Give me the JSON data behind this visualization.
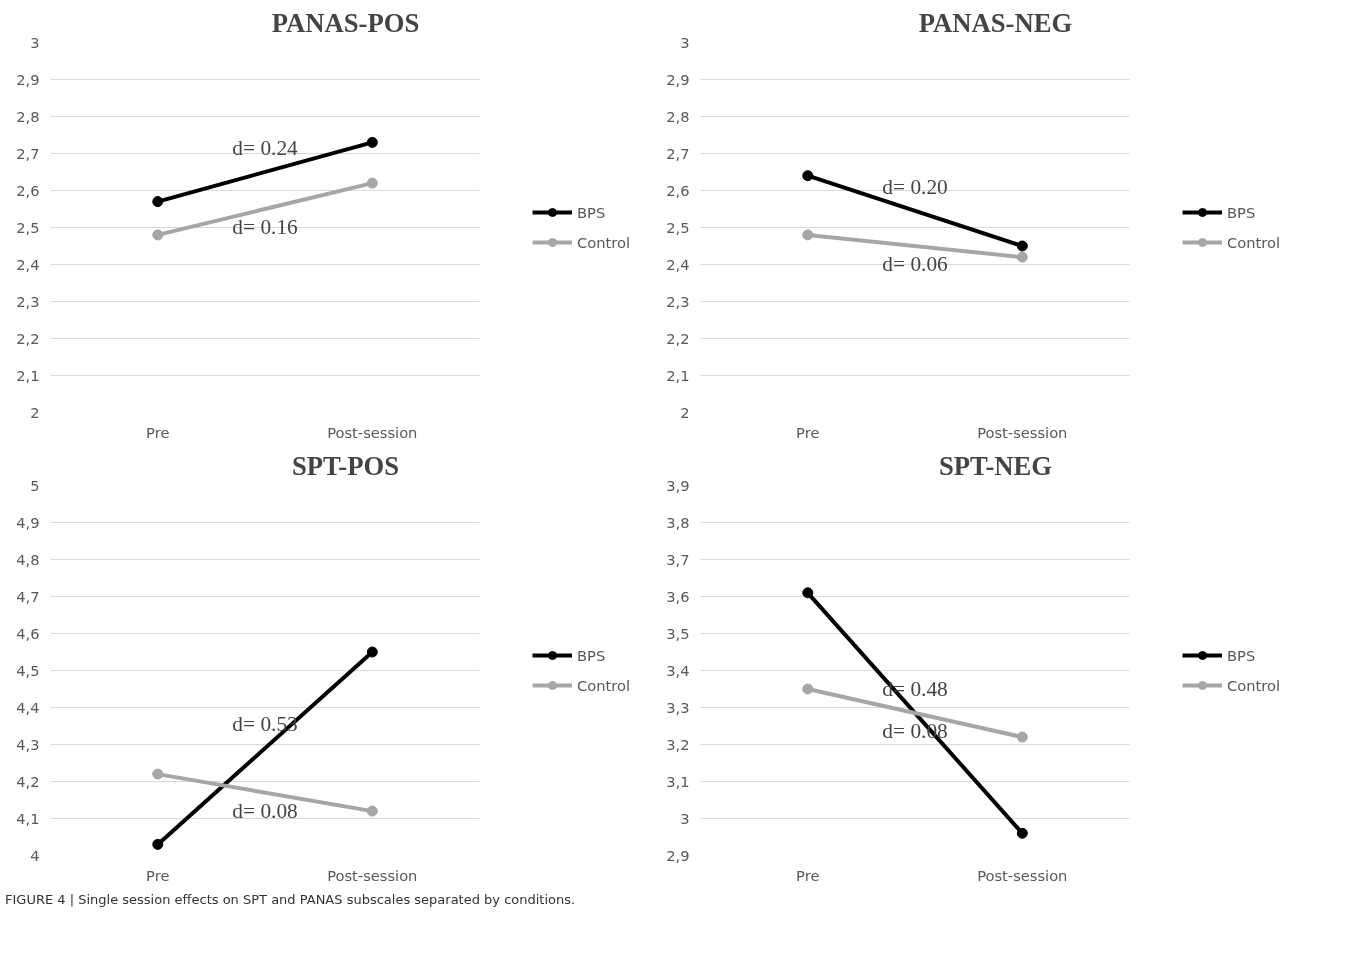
{
  "chart_data": [
    {
      "type": "line",
      "title": "PANAS-POS",
      "categories": [
        "Pre",
        "Post-session"
      ],
      "series": [
        {
          "name": "BPS",
          "color": "#000000",
          "values": [
            2.57,
            2.73
          ]
        },
        {
          "name": "Control",
          "color": "#a6a6a6",
          "values": [
            2.48,
            2.62
          ]
        }
      ],
      "ylim": [
        2,
        3
      ],
      "yticks": [
        2,
        {
          "value": 2.1,
          "label": "2,1"
        },
        {
          "value": 2.2,
          "label": "2,2"
        },
        {
          "value": 2.3,
          "label": "2,3"
        },
        {
          "value": 2.4,
          "label": "2,4"
        },
        {
          "value": 2.5,
          "label": "2,5"
        },
        {
          "value": 2.6,
          "label": "2,6"
        },
        {
          "value": 2.7,
          "label": "2,7"
        },
        {
          "value": 2.8,
          "label": "2,8"
        },
        {
          "value": 2.9,
          "label": "2,9"
        },
        3
      ],
      "annotations": [
        "d= 0.24",
        "d= 0.16"
      ],
      "grid": "y",
      "legend": "right",
      "marker": "circle",
      "line_style": "solid"
    },
    {
      "type": "line",
      "title": "PANAS-NEG",
      "categories": [
        "Pre",
        "Post-session"
      ],
      "series": [
        {
          "name": "BPS",
          "color": "#000000",
          "values": [
            2.64,
            2.45
          ]
        },
        {
          "name": "Control",
          "color": "#a6a6a6",
          "values": [
            2.48,
            2.42
          ]
        }
      ],
      "ylim": [
        2,
        3
      ],
      "yticks": [
        2,
        {
          "value": 2.1,
          "label": "2,1"
        },
        {
          "value": 2.2,
          "label": "2,2"
        },
        {
          "value": 2.3,
          "label": "2,3"
        },
        {
          "value": 2.4,
          "label": "2,4"
        },
        {
          "value": 2.5,
          "label": "2,5"
        },
        {
          "value": 2.6,
          "label": "2,6"
        },
        {
          "value": 2.7,
          "label": "2,7"
        },
        {
          "value": 2.8,
          "label": "2,8"
        },
        {
          "value": 2.9,
          "label": "2,9"
        },
        3
      ],
      "annotations": [
        "d= 0.20",
        "d= 0.06"
      ],
      "grid": "y",
      "legend": "right",
      "marker": "circle",
      "line_style": "solid"
    },
    {
      "type": "line",
      "title": "SPT-POS",
      "categories": [
        "Pre",
        "Post-session"
      ],
      "series": [
        {
          "name": "BPS",
          "color": "#000000",
          "values": [
            4.03,
            4.55
          ]
        },
        {
          "name": "Control",
          "color": "#a6a6a6",
          "values": [
            4.22,
            4.12
          ]
        }
      ],
      "ylim": [
        4,
        5
      ],
      "yticks": [
        4,
        {
          "value": 4.1,
          "label": "4,1"
        },
        {
          "value": 4.2,
          "label": "4,2"
        },
        {
          "value": 4.3,
          "label": "4,3"
        },
        {
          "value": 4.4,
          "label": "4,4"
        },
        {
          "value": 4.5,
          "label": "4,5"
        },
        {
          "value": 4.6,
          "label": "4,6"
        },
        {
          "value": 4.7,
          "label": "4,7"
        },
        {
          "value": 4.8,
          "label": "4,8"
        },
        {
          "value": 4.9,
          "label": "4,9"
        },
        5
      ],
      "annotations": [
        "d= 0.53",
        "d= 0.08"
      ],
      "grid": "y",
      "legend": "right",
      "marker": "circle",
      "line_style": "solid"
    },
    {
      "type": "line",
      "title": "SPT-NEG",
      "categories": [
        "Pre",
        "Post-session"
      ],
      "series": [
        {
          "name": "BPS",
          "color": "#000000",
          "values": [
            3.61,
            2.96
          ]
        },
        {
          "name": "Control",
          "color": "#a6a6a6",
          "values": [
            3.35,
            3.22
          ]
        }
      ],
      "ylim": [
        2.9,
        3.9
      ],
      "yticks": [
        {
          "value": 2.9,
          "label": "2,9"
        },
        3,
        {
          "value": 3.1,
          "label": "3,1"
        },
        {
          "value": 3.2,
          "label": "3,2"
        },
        {
          "value": 3.3,
          "label": "3,3"
        },
        {
          "value": 3.4,
          "label": "3,4"
        },
        {
          "value": 3.5,
          "label": "3,5"
        },
        {
          "value": 3.6,
          "label": "3,6"
        },
        {
          "value": 3.7,
          "label": "3,7"
        },
        {
          "value": 3.8,
          "label": "3,8"
        },
        {
          "value": 3.9,
          "label": "3,9"
        }
      ],
      "annotations": [
        "d= 0.48",
        "d= 0.08"
      ],
      "grid": "y",
      "legend": "right",
      "marker": "circle",
      "line_style": "solid"
    },
    {
      "type": "other",
      "annotations": [
        "FIGURE 4 | Single session effects on SPT and PANAS subscales separated by conditions."
      ]
    }
  ]
}
